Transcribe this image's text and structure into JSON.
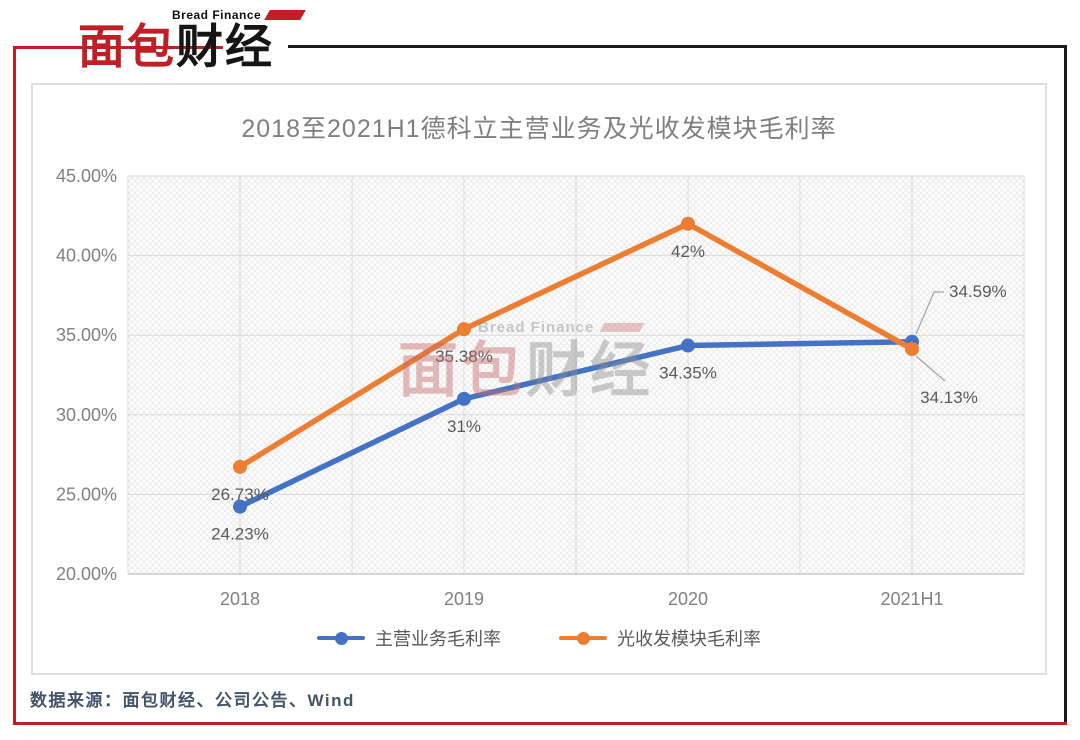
{
  "logo": {
    "brand_en": "Bread Finance",
    "brand_zh_red": "面包",
    "brand_zh_black": "财经"
  },
  "watermark": {
    "brand_en": "Bread Finance",
    "brand_zh_red": "面包",
    "brand_zh_black": "财经"
  },
  "footer": {
    "source": "数据来源：面包财经、公司公告、Wind"
  },
  "colors": {
    "series_blue": "#4472C4",
    "series_orange": "#ED7D31",
    "frame_red": "#C01F25",
    "frame_black": "#1A1A1A",
    "logo_red": "#C01F25",
    "title_gray": "#7F7F7F",
    "axis_label_gray": "#808080",
    "data_label_gray": "#595959",
    "grid_line": "#D9D9D9",
    "axis_line": "#BFBFBF",
    "leader_line": "#A6A6A6",
    "source_text": "#44546A"
  },
  "chart_data": {
    "type": "line",
    "title": "2018至2021H1德科立主营业务及光收发模块毛利率",
    "categories": [
      "2018",
      "2019",
      "2020",
      "2021H1"
    ],
    "series": [
      {
        "name": "主营业务毛利率",
        "color": "#4472C4",
        "values": [
          24.23,
          31,
          34.35,
          34.59
        ],
        "point_labels": [
          "24.23%",
          "31%",
          "34.35%",
          "34.59%"
        ]
      },
      {
        "name": "光收发模块毛利率",
        "color": "#ED7D31",
        "values": [
          26.73,
          35.38,
          42,
          34.13
        ],
        "point_labels": [
          "26.73%",
          "35.38%",
          "42%",
          "34.13%"
        ]
      }
    ],
    "xlabel": "",
    "ylabel": "",
    "ylim": [
      20,
      45
    ],
    "y_tick_step": 5,
    "y_tick_labels": [
      "20.00%",
      "25.00%",
      "30.00%",
      "35.00%",
      "40.00%",
      "45.00%"
    ],
    "grid": true,
    "plot_background": "diagonal-crosshatch",
    "legend_position": "bottom"
  }
}
